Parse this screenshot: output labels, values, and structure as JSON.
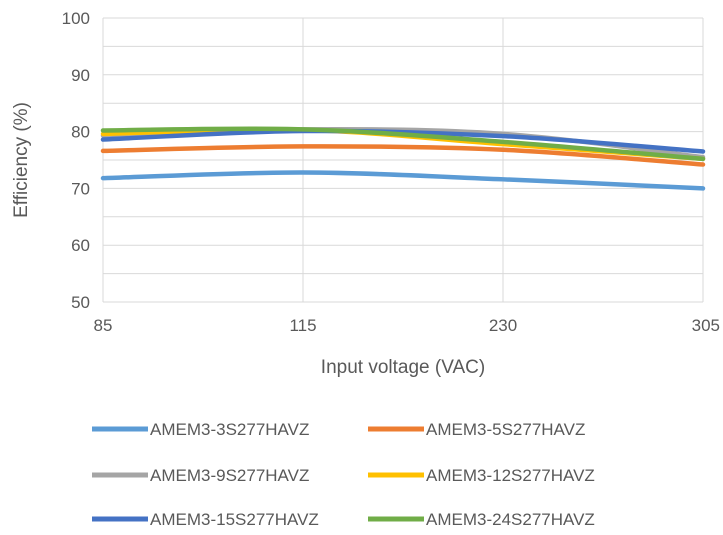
{
  "chart_data": {
    "type": "line",
    "title": "",
    "xlabel": "Input voltage (VAC)",
    "ylabel": "Efficiency (%)",
    "ylim": [
      50,
      100
    ],
    "yticks": [
      "50",
      "60",
      "70",
      "80",
      "90",
      "100"
    ],
    "categories": [
      "85",
      "115",
      "230",
      "305"
    ],
    "grid": true,
    "legend_position": "bottom",
    "series": [
      {
        "name": "AMEM3-3S277HAVZ",
        "color": "#5B9BD5",
        "values": [
          71.8,
          72.8,
          71.6,
          70.0
        ]
      },
      {
        "name": "AMEM3-5S277HAVZ",
        "color": "#ED7D31",
        "values": [
          76.6,
          77.4,
          76.8,
          74.2
        ]
      },
      {
        "name": "AMEM3-9S277HAVZ",
        "color": "#A5A5A5",
        "values": [
          79.3,
          80.4,
          79.6,
          75.5
        ]
      },
      {
        "name": "AMEM3-12S277HAVZ",
        "color": "#FFC000",
        "values": [
          79.6,
          80.3,
          77.8,
          75.2
        ]
      },
      {
        "name": "AMEM3-15S277HAVZ",
        "color": "#4472C4",
        "values": [
          78.6,
          80.1,
          79.2,
          76.5
        ]
      },
      {
        "name": "AMEM3-24S277HAVZ",
        "color": "#70AD47",
        "values": [
          80.2,
          80.4,
          78.2,
          75.2
        ]
      }
    ]
  }
}
